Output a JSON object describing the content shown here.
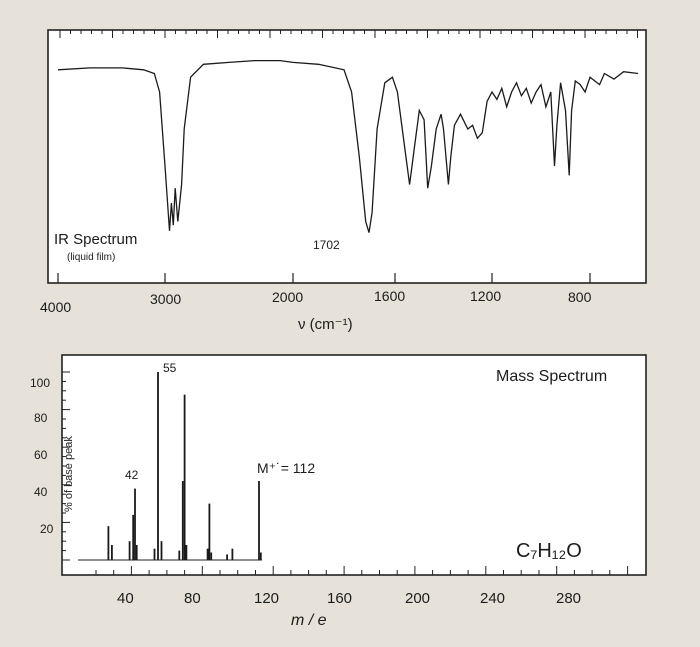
{
  "ir": {
    "type": "line",
    "title": "IR Spectrum",
    "subtitle": "(liquid film)",
    "x_label": "ν (cm⁻¹)",
    "x_ticks": [
      "4000",
      "3000",
      "2000",
      "1600",
      "1200",
      "800"
    ],
    "peak_label": "1702",
    "chart_data": {
      "type": "line",
      "x_unit": "cm-1",
      "y_unit": "% transmittance (unlabeled)",
      "xlim": [
        4000,
        600
      ],
      "points": [
        [
          4000,
          92
        ],
        [
          3700,
          93
        ],
        [
          3400,
          93
        ],
        [
          3200,
          92
        ],
        [
          3100,
          90
        ],
        [
          3050,
          80
        ],
        [
          3000,
          40
        ],
        [
          2965,
          5
        ],
        [
          2950,
          20
        ],
        [
          2935,
          8
        ],
        [
          2920,
          28
        ],
        [
          2900,
          10
        ],
        [
          2870,
          30
        ],
        [
          2850,
          60
        ],
        [
          2800,
          88
        ],
        [
          2700,
          95
        ],
        [
          2500,
          96
        ],
        [
          2300,
          97
        ],
        [
          2100,
          97
        ],
        [
          2000,
          96
        ],
        [
          1900,
          95
        ],
        [
          1800,
          92
        ],
        [
          1770,
          80
        ],
        [
          1740,
          45
        ],
        [
          1715,
          10
        ],
        [
          1702,
          4
        ],
        [
          1690,
          15
        ],
        [
          1670,
          60
        ],
        [
          1640,
          85
        ],
        [
          1610,
          88
        ],
        [
          1590,
          80
        ],
        [
          1560,
          50
        ],
        [
          1540,
          30
        ],
        [
          1520,
          50
        ],
        [
          1500,
          70
        ],
        [
          1480,
          65
        ],
        [
          1465,
          28
        ],
        [
          1450,
          40
        ],
        [
          1430,
          60
        ],
        [
          1410,
          68
        ],
        [
          1400,
          60
        ],
        [
          1380,
          30
        ],
        [
          1370,
          45
        ],
        [
          1355,
          62
        ],
        [
          1330,
          68
        ],
        [
          1300,
          60
        ],
        [
          1280,
          62
        ],
        [
          1260,
          55
        ],
        [
          1240,
          58
        ],
        [
          1220,
          75
        ],
        [
          1200,
          80
        ],
        [
          1180,
          76
        ],
        [
          1160,
          82
        ],
        [
          1140,
          72
        ],
        [
          1120,
          80
        ],
        [
          1100,
          85
        ],
        [
          1080,
          78
        ],
        [
          1060,
          82
        ],
        [
          1040,
          74
        ],
        [
          1020,
          80
        ],
        [
          1000,
          84
        ],
        [
          980,
          72
        ],
        [
          960,
          80
        ],
        [
          945,
          40
        ],
        [
          935,
          62
        ],
        [
          920,
          85
        ],
        [
          900,
          70
        ],
        [
          885,
          35
        ],
        [
          875,
          70
        ],
        [
          860,
          86
        ],
        [
          840,
          84
        ],
        [
          820,
          80
        ],
        [
          800,
          88
        ],
        [
          760,
          84
        ],
        [
          740,
          90
        ],
        [
          700,
          87
        ],
        [
          660,
          91
        ],
        [
          600,
          90
        ]
      ]
    }
  },
  "ms": {
    "title": "Mass Spectrum",
    "y_label": "% of base peak",
    "x_label": "m / e",
    "formula": "C₇H₁₂O",
    "molecular_ion_label": "M⁺˙= 112",
    "x_ticks": [
      "40",
      "80",
      "120",
      "160",
      "200",
      "240",
      "280"
    ],
    "y_ticks": [
      "20",
      "40",
      "60",
      "80",
      "100"
    ],
    "peak_labels": [
      "55",
      "42"
    ],
    "chart_data": {
      "type": "bar",
      "x_unit": "m/e",
      "y_unit": "% of base peak",
      "xlim": [
        14,
        320
      ],
      "ylim": [
        0,
        100
      ],
      "peaks": [
        {
          "x": 27,
          "y": 18
        },
        {
          "x": 29,
          "y": 8
        },
        {
          "x": 39,
          "y": 10
        },
        {
          "x": 41,
          "y": 24
        },
        {
          "x": 42,
          "y": 38
        },
        {
          "x": 43,
          "y": 8
        },
        {
          "x": 53,
          "y": 6
        },
        {
          "x": 55,
          "y": 100
        },
        {
          "x": 57,
          "y": 10
        },
        {
          "x": 67,
          "y": 5
        },
        {
          "x": 69,
          "y": 42
        },
        {
          "x": 70,
          "y": 88
        },
        {
          "x": 71,
          "y": 8
        },
        {
          "x": 83,
          "y": 6
        },
        {
          "x": 84,
          "y": 30
        },
        {
          "x": 85,
          "y": 4
        },
        {
          "x": 94,
          "y": 3
        },
        {
          "x": 97,
          "y": 6
        },
        {
          "x": 112,
          "y": 42
        },
        {
          "x": 113,
          "y": 4
        }
      ]
    }
  }
}
